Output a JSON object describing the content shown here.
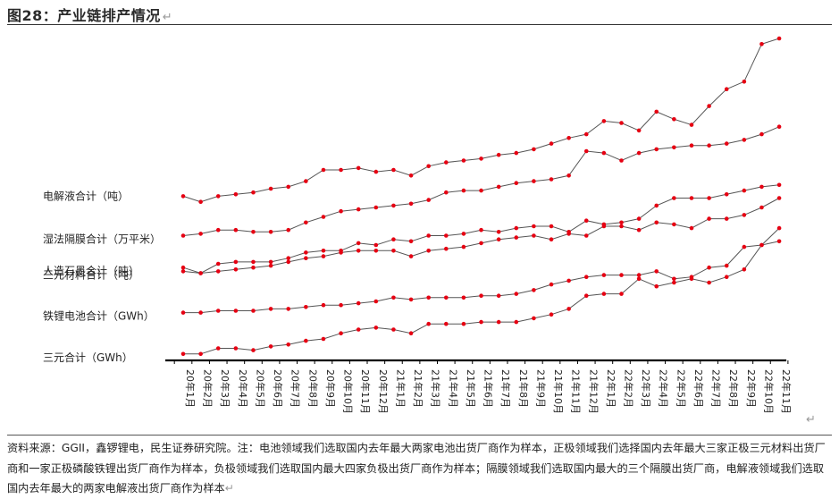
{
  "figure": {
    "title": "图28：产业链排产情况",
    "source": "资料来源：GGII，鑫锣锂电，民生证券研究院。注：电池领域我们选取国内去年最大两家电池出货厂商作为样本，正极领域我们选择国内去年最大三家正极三元材料出货厂商和一家正极磷酸铁锂出货厂商作为样本，负极领域我们选取国内最大四家负极出货厂商作为样本；隔膜领域我们选取国内最大的三个隔膜出货厂商，电解液领域我们选取国内去年最大的两家电解液出货厂商作为样本",
    "return_mark": "↵"
  },
  "chart_data": {
    "type": "line",
    "categories": [
      "20年1月",
      "20年2月",
      "20年3月",
      "20年4月",
      "20年5月",
      "20年6月",
      "20年7月",
      "20年8月",
      "20年9月",
      "20年10月",
      "20年11月",
      "20年12月",
      "21年1月",
      "21年2月",
      "21年3月",
      "21年4月",
      "21年5月",
      "21年6月",
      "21年7月",
      "21年8月",
      "21年9月",
      "21年10月",
      "21年11月",
      "21年12月",
      "22年1月",
      "22年2月",
      "22年3月",
      "22年4月",
      "22年5月",
      "22年6月",
      "22年7月",
      "22年8月",
      "22年9月",
      "22年10月",
      "22年11月"
    ],
    "series": [
      {
        "name": "电解液合计（吨）",
        "values": [
          11.6,
          11.3,
          11.6,
          11.7,
          11.8,
          12.0,
          12.1,
          12.4,
          13.0,
          13.0,
          13.1,
          12.9,
          13.0,
          12.7,
          13.2,
          13.4,
          13.5,
          13.6,
          13.8,
          13.9,
          14.1,
          14.4,
          14.7,
          14.9,
          15.6,
          15.5,
          15.1,
          16.1,
          15.7,
          15.4,
          16.4,
          17.3,
          17.7,
          19.7,
          20.0
        ]
      },
      {
        "name": "湿法隔膜合计（万平米）",
        "values": [
          9.5,
          9.6,
          9.8,
          9.8,
          9.7,
          9.7,
          9.8,
          10.2,
          10.5,
          10.8,
          10.9,
          11.0,
          11.1,
          11.2,
          11.4,
          11.8,
          11.9,
          11.9,
          12.1,
          12.3,
          12.4,
          12.5,
          12.7,
          14.0,
          13.9,
          13.5,
          13.9,
          14.1,
          14.2,
          14.3,
          14.3,
          14.4,
          14.6,
          14.9,
          15.3
        ]
      },
      {
        "name": "人造石墨合计（吨）",
        "values": [
          7.8,
          7.5,
          8.0,
          8.1,
          8.1,
          8.1,
          8.3,
          8.6,
          8.7,
          8.7,
          9.1,
          9.0,
          9.3,
          9.2,
          9.5,
          9.5,
          9.6,
          9.8,
          9.7,
          9.9,
          10.0,
          10.0,
          9.7,
          10.3,
          10.1,
          10.2,
          10.4,
          11.1,
          11.5,
          11.5,
          11.5,
          11.7,
          11.9,
          12.1,
          12.2
        ]
      },
      {
        "name": "三元材料合计（吨）",
        "values": [
          7.6,
          7.5,
          7.6,
          7.7,
          7.8,
          7.9,
          8.1,
          8.3,
          8.4,
          8.6,
          8.7,
          8.7,
          8.7,
          8.4,
          8.7,
          8.8,
          8.9,
          9.1,
          9.3,
          9.4,
          9.5,
          9.3,
          9.6,
          9.5,
          10.0,
          10.0,
          9.8,
          10.2,
          10.1,
          9.9,
          10.4,
          10.4,
          10.6,
          11.0,
          11.5
        ]
      },
      {
        "name": "铁锂电池合计（GWh）",
        "values": [
          5.4,
          5.4,
          5.5,
          5.5,
          5.5,
          5.6,
          5.6,
          5.7,
          5.8,
          5.8,
          5.9,
          6.0,
          6.2,
          6.1,
          6.2,
          6.2,
          6.2,
          6.3,
          6.3,
          6.4,
          6.6,
          6.9,
          7.1,
          7.3,
          7.4,
          7.4,
          7.4,
          7.6,
          7.2,
          7.3,
          7.8,
          7.9,
          8.9,
          9.0,
          9.2
        ]
      },
      {
        "name": "三元合计（GWh）",
        "values": [
          3.2,
          3.2,
          3.5,
          3.5,
          3.4,
          3.6,
          3.7,
          3.9,
          4.0,
          4.3,
          4.5,
          4.6,
          4.5,
          4.3,
          4.8,
          4.8,
          4.8,
          4.9,
          4.9,
          4.9,
          5.1,
          5.3,
          5.6,
          6.3,
          6.4,
          6.4,
          7.2,
          6.8,
          7.0,
          7.2,
          7.0,
          7.3,
          7.7,
          9.0,
          9.9
        ]
      }
    ],
    "xlabel": "",
    "ylabel": "",
    "grid": false,
    "legend": "left-labels",
    "colors": {
      "line": "#555555",
      "marker": "#e60012",
      "axis": "#000000"
    }
  }
}
